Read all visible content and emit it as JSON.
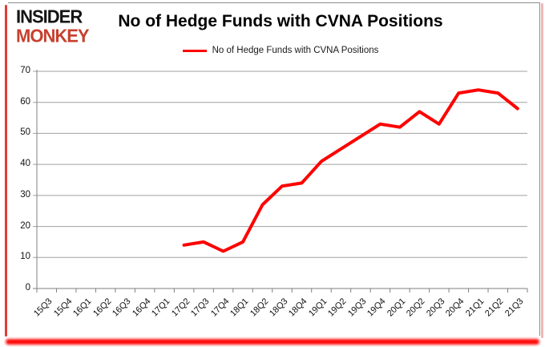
{
  "logo": {
    "line1": "INSIDER",
    "line2": "MONKEY"
  },
  "title": "No of Hedge Funds with CVNA Positions",
  "legend": {
    "label": "No of Hedge Funds with CVNA Positions"
  },
  "colors": {
    "series_line": "#ff0000",
    "grid": "#a0a0a0",
    "axis": "#7f7f7f",
    "logo_black": "#141414",
    "logo_red": "#c7402e",
    "text": "#000000"
  },
  "chart_data": {
    "type": "line",
    "title": "No of Hedge Funds with CVNA Positions",
    "xlabel": "",
    "ylabel": "",
    "ylim": [
      0,
      70
    ],
    "yticks": [
      0,
      10,
      20,
      30,
      40,
      50,
      60,
      70
    ],
    "grid": true,
    "legend_position": "top",
    "categories": [
      "15Q3",
      "15Q4",
      "16Q1",
      "16Q2",
      "16Q3",
      "16Q4",
      "17Q1",
      "17Q2",
      "17Q3",
      "17Q4",
      "18Q1",
      "18Q2",
      "18Q3",
      "18Q4",
      "19Q1",
      "19Q2",
      "19Q3",
      "19Q4",
      "20Q1",
      "20Q2",
      "20Q3",
      "20Q4",
      "21Q1",
      "21Q2",
      "21Q3"
    ],
    "series": [
      {
        "name": "No of Hedge Funds with CVNA Positions",
        "color": "#ff0000",
        "values": [
          null,
          null,
          null,
          null,
          null,
          null,
          null,
          14,
          15,
          12,
          15,
          27,
          33,
          34,
          41,
          45,
          49,
          53,
          52,
          57,
          53,
          63,
          64,
          63,
          58
        ]
      }
    ]
  }
}
